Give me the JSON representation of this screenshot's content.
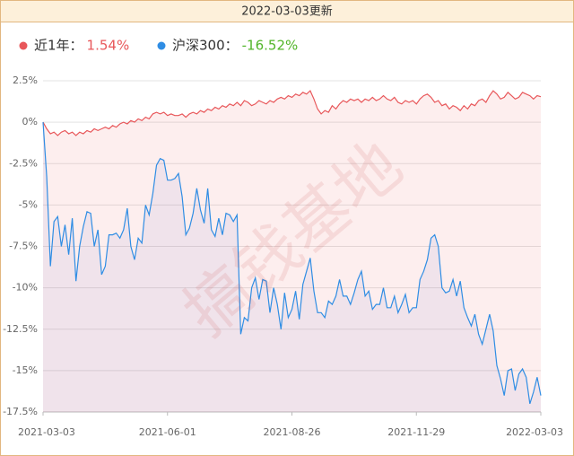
{
  "chart_data": {
    "type": "line",
    "header": "2022-03-03更新",
    "watermark": "搞钱基地",
    "categories": [
      "2021-03-03",
      null,
      null,
      null,
      null,
      null,
      null,
      null,
      null,
      null,
      null,
      null,
      null,
      null,
      null,
      null,
      null,
      null,
      null,
      null,
      null,
      null,
      null,
      null,
      null,
      null,
      null,
      null,
      null,
      null,
      null,
      null,
      null,
      null,
      "2021-06-01",
      null,
      null,
      null,
      null,
      null,
      null,
      null,
      null,
      null,
      null,
      null,
      null,
      null,
      null,
      null,
      null,
      null,
      null,
      null,
      null,
      null,
      null,
      null,
      null,
      null,
      null,
      null,
      null,
      null,
      null,
      null,
      null,
      null,
      "2021-08-26",
      null,
      null,
      null,
      null,
      null,
      null,
      null,
      null,
      null,
      null,
      null,
      null,
      null,
      null,
      null,
      null,
      null,
      null,
      null,
      null,
      null,
      null,
      null,
      null,
      null,
      null,
      null,
      null,
      null,
      null,
      null,
      null,
      null,
      "2021-11-29",
      null,
      null,
      null,
      null,
      null,
      null,
      null,
      null,
      null,
      null,
      null,
      null,
      null,
      null,
      null,
      null,
      null,
      null,
      null,
      null,
      null,
      null,
      null,
      null,
      null,
      null,
      null,
      null,
      null,
      null,
      null,
      null,
      null,
      "2022-03-03"
    ],
    "series": [
      {
        "name": "近1年：",
        "color": "#e8575a",
        "fill": "rgba(240,90,90,0.10)",
        "legend_label": "1.54%",
        "legend_color": "#e8575a",
        "values": [
          0,
          -0.4,
          -0.7,
          -0.6,
          -0.8,
          -0.6,
          -0.5,
          -0.7,
          -0.6,
          -0.8,
          -0.6,
          -0.7,
          -0.5,
          -0.6,
          -0.4,
          -0.5,
          -0.4,
          -0.3,
          -0.4,
          -0.2,
          -0.3,
          -0.1,
          0,
          -0.1,
          0.1,
          0,
          0.2,
          0.1,
          0.3,
          0.2,
          0.5,
          0.6,
          0.5,
          0.6,
          0.4,
          0.5,
          0.4,
          0.4,
          0.5,
          0.3,
          0.5,
          0.6,
          0.5,
          0.7,
          0.6,
          0.8,
          0.7,
          0.9,
          0.8,
          1.0,
          0.9,
          1.1,
          1.0,
          1.2,
          1.0,
          1.3,
          1.2,
          1.0,
          1.1,
          1.3,
          1.2,
          1.1,
          1.3,
          1.2,
          1.4,
          1.5,
          1.4,
          1.6,
          1.5,
          1.7,
          1.6,
          1.8,
          1.7,
          1.9,
          1.4,
          0.8,
          0.5,
          0.7,
          0.6,
          1.0,
          0.8,
          1.1,
          1.3,
          1.2,
          1.4,
          1.3,
          1.4,
          1.2,
          1.4,
          1.3,
          1.5,
          1.3,
          1.4,
          1.6,
          1.4,
          1.3,
          1.5,
          1.2,
          1.1,
          1.3,
          1.2,
          1.3,
          1.1,
          1.4,
          1.6,
          1.7,
          1.5,
          1.2,
          1.3,
          1.0,
          1.1,
          0.8,
          1.0,
          0.9,
          0.7,
          1.0,
          0.8,
          1.1,
          1.0,
          1.3,
          1.4,
          1.2,
          1.6,
          1.9,
          1.7,
          1.4,
          1.5,
          1.8,
          1.6,
          1.4,
          1.5,
          1.8,
          1.7,
          1.6,
          1.4,
          1.6,
          1.54
        ]
      },
      {
        "name": "沪深300：",
        "color": "#2f8de4",
        "fill": "rgba(70,90,200,0.07)",
        "legend_label": "-16.52%",
        "legend_color": "#52b52a",
        "values": [
          0,
          -3.3,
          -8.7,
          -6,
          -5.7,
          -7.5,
          -6.2,
          -8,
          -5.8,
          -9.6,
          -7.5,
          -6.3,
          -5.4,
          -5.5,
          -7.5,
          -6.5,
          -9.2,
          -8.7,
          -6.8,
          -6.8,
          -6.7,
          -7,
          -6.5,
          -5.2,
          -7.5,
          -8.3,
          -7,
          -7.3,
          -5,
          -5.6,
          -4.3,
          -2.6,
          -2.2,
          -2.3,
          -3.5,
          -3.5,
          -3.4,
          -3.1,
          -4.5,
          -6.8,
          -6.4,
          -5.5,
          -4,
          -5.3,
          -6.1,
          -4,
          -6.5,
          -6.9,
          -5.8,
          -6.8,
          -5.5,
          -5.6,
          -6,
          -5.6,
          -12.8,
          -11.8,
          -12,
          -10,
          -9.4,
          -10.7,
          -9.5,
          -9.6,
          -11.5,
          -10,
          -11,
          -12.5,
          -10.3,
          -11.8,
          -11.3,
          -10.2,
          -11.9,
          -9.8,
          -9,
          -8.2,
          -10.2,
          -11.5,
          -11.5,
          -11.8,
          -10.8,
          -11,
          -10.5,
          -9.5,
          -10.5,
          -10.5,
          -11,
          -10.3,
          -9.5,
          -9,
          -10.5,
          -10.2,
          -11.3,
          -11,
          -11,
          -10,
          -11.2,
          -11.2,
          -10.5,
          -11.5,
          -11,
          -10.4,
          -11.5,
          -11.2,
          -11.2,
          -9.5,
          -9,
          -8.3,
          -7,
          -6.8,
          -7.5,
          -10,
          -10.3,
          -10.2,
          -9.5,
          -10.5,
          -9.6,
          -11.2,
          -11.8,
          -12.3,
          -11.6,
          -12.8,
          -13.4,
          -12.5,
          -11.6,
          -12.6,
          -14.7,
          -15.5,
          -16.5,
          -15,
          -14.9,
          -16.2,
          -15.2,
          -14.9,
          -15.4,
          -17,
          -16.3,
          -15.4,
          -16.5
        ]
      }
    ],
    "ylim": [
      -17.5,
      2.5
    ],
    "yticks": [
      {
        "value": -17.5,
        "label": "-17.5%"
      },
      {
        "value": -15,
        "label": "-15%"
      },
      {
        "value": -12.5,
        "label": "-12.5%"
      },
      {
        "value": -10,
        "label": "-10%"
      },
      {
        "value": -7.5,
        "label": "-7.5%"
      },
      {
        "value": -5,
        "label": "-5%"
      },
      {
        "value": -2.5,
        "label": "-2.5%"
      },
      {
        "value": 0,
        "label": "0%"
      },
      {
        "value": 2.5,
        "label": "2.5%"
      }
    ],
    "grid": true
  }
}
